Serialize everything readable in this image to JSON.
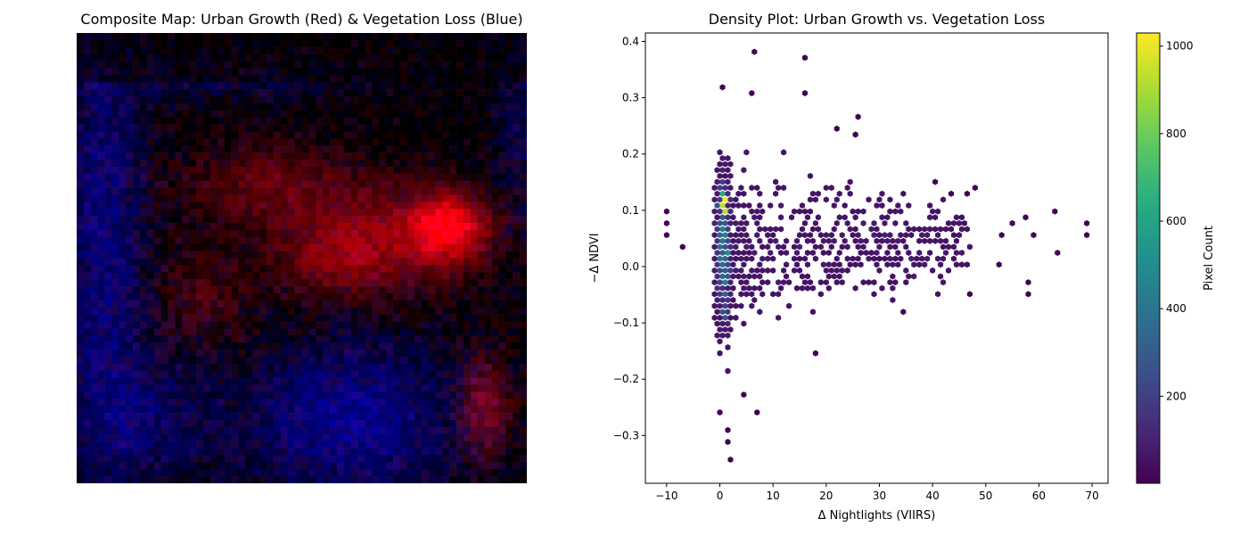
{
  "left_panel": {
    "title": "Composite Map: Urban Growth (Red) & Vegetation Loss (Blue)"
  },
  "right_panel": {
    "title": "Density Plot: Urban Growth vs. Vegetation Loss"
  },
  "chart_data": [
    {
      "type": "image",
      "title": "Composite Map: Urban Growth (Red) & Vegetation Loss (Blue)",
      "axes": "off",
      "colors": {
        "urban_growth": "#ff0000",
        "vegetation_loss": "#0000ff"
      },
      "regions": [
        {
          "channel": "red",
          "location": "center-right",
          "intensity": 1.0
        },
        {
          "channel": "red",
          "location": "upper-center",
          "intensity": 0.55
        },
        {
          "channel": "red",
          "location": "lower-right edge",
          "intensity": 0.6
        },
        {
          "channel": "blue",
          "location": "left side",
          "intensity": 0.7
        },
        {
          "channel": "blue",
          "location": "bottom-center",
          "intensity": 0.8
        },
        {
          "channel": "blue",
          "location": "upper-right",
          "intensity": 0.5
        }
      ]
    },
    {
      "type": "hexbin",
      "title": "Density Plot: Urban Growth vs. Vegetation Loss",
      "xlabel": "Δ Nightlights (VIIRS)",
      "ylabel": "−Δ NDVI",
      "xlim": [
        -14,
        73
      ],
      "ylim": [
        -0.385,
        0.415
      ],
      "xticks": [
        -10,
        0,
        10,
        20,
        30,
        40,
        50,
        60,
        70
      ],
      "xtick_labels": [
        "−10",
        "0",
        "10",
        "20",
        "30",
        "40",
        "50",
        "60",
        "70"
      ],
      "yticks": [
        -0.3,
        -0.2,
        -0.1,
        0.0,
        0.1,
        0.2,
        0.3,
        0.4
      ],
      "ytick_labels": [
        "−0.3",
        "−0.2",
        "−0.1",
        "0.0",
        "0.1",
        "0.2",
        "0.3",
        "0.4"
      ],
      "colormap": "viridis",
      "colorbar": {
        "label": "Pixel Count",
        "range": [
          1,
          1030
        ],
        "ticks": [
          200,
          400,
          600,
          800,
          1000
        ],
        "tick_labels": [
          "200",
          "400",
          "600",
          "800",
          "1000"
        ]
      },
      "grid": false,
      "peak": {
        "x": 0.8,
        "y": 0.115,
        "count": 1030
      },
      "core_region": {
        "x_range": [
          -3,
          45
        ],
        "y_range": [
          -0.17,
          0.19
        ]
      },
      "outliers": [
        {
          "x": -10.0,
          "y": 0.1
        },
        {
          "x": -10.0,
          "y": 0.06
        },
        {
          "x": -10.0,
          "y": 0.08
        },
        {
          "x": -7.5,
          "y": 0.03
        },
        {
          "x": 6.5,
          "y": 0.378
        },
        {
          "x": 15.5,
          "y": 0.367
        },
        {
          "x": 15.5,
          "y": 0.303
        },
        {
          "x": 6.2,
          "y": 0.303
        },
        {
          "x": 0.3,
          "y": 0.314
        },
        {
          "x": 25.8,
          "y": 0.261
        },
        {
          "x": 25.8,
          "y": 0.238
        },
        {
          "x": 21.5,
          "y": 0.249
        },
        {
          "x": 1.0,
          "y": -0.292
        },
        {
          "x": 1.0,
          "y": -0.314
        },
        {
          "x": 1.6,
          "y": -0.346
        },
        {
          "x": 6.8,
          "y": -0.261
        },
        {
          "x": 4.9,
          "y": -0.23
        },
        {
          "x": 0.3,
          "y": -0.261
        },
        {
          "x": 69.0,
          "y": 0.08
        },
        {
          "x": 69.0,
          "y": 0.058
        },
        {
          "x": 62.5,
          "y": 0.1
        },
        {
          "x": 63.5,
          "y": 0.028
        },
        {
          "x": 57.5,
          "y": -0.028
        },
        {
          "x": 57.5,
          "y": -0.048
        },
        {
          "x": 46.5,
          "y": -0.048
        },
        {
          "x": 48.0,
          "y": 0.144
        },
        {
          "x": 57.5,
          "y": 0.09
        },
        {
          "x": 58.5,
          "y": 0.06
        },
        {
          "x": 52.5,
          "y": 0.06
        },
        {
          "x": 54.5,
          "y": 0.08
        },
        {
          "x": 52.0,
          "y": 0.004
        },
        {
          "x": 34.0,
          "y": -0.08
        },
        {
          "x": 17.5,
          "y": -0.155
        },
        {
          "x": 40.5,
          "y": 0.155
        },
        {
          "x": 43.0,
          "y": 0.133
        },
        {
          "x": 46.0,
          "y": 0.133
        }
      ]
    }
  ]
}
